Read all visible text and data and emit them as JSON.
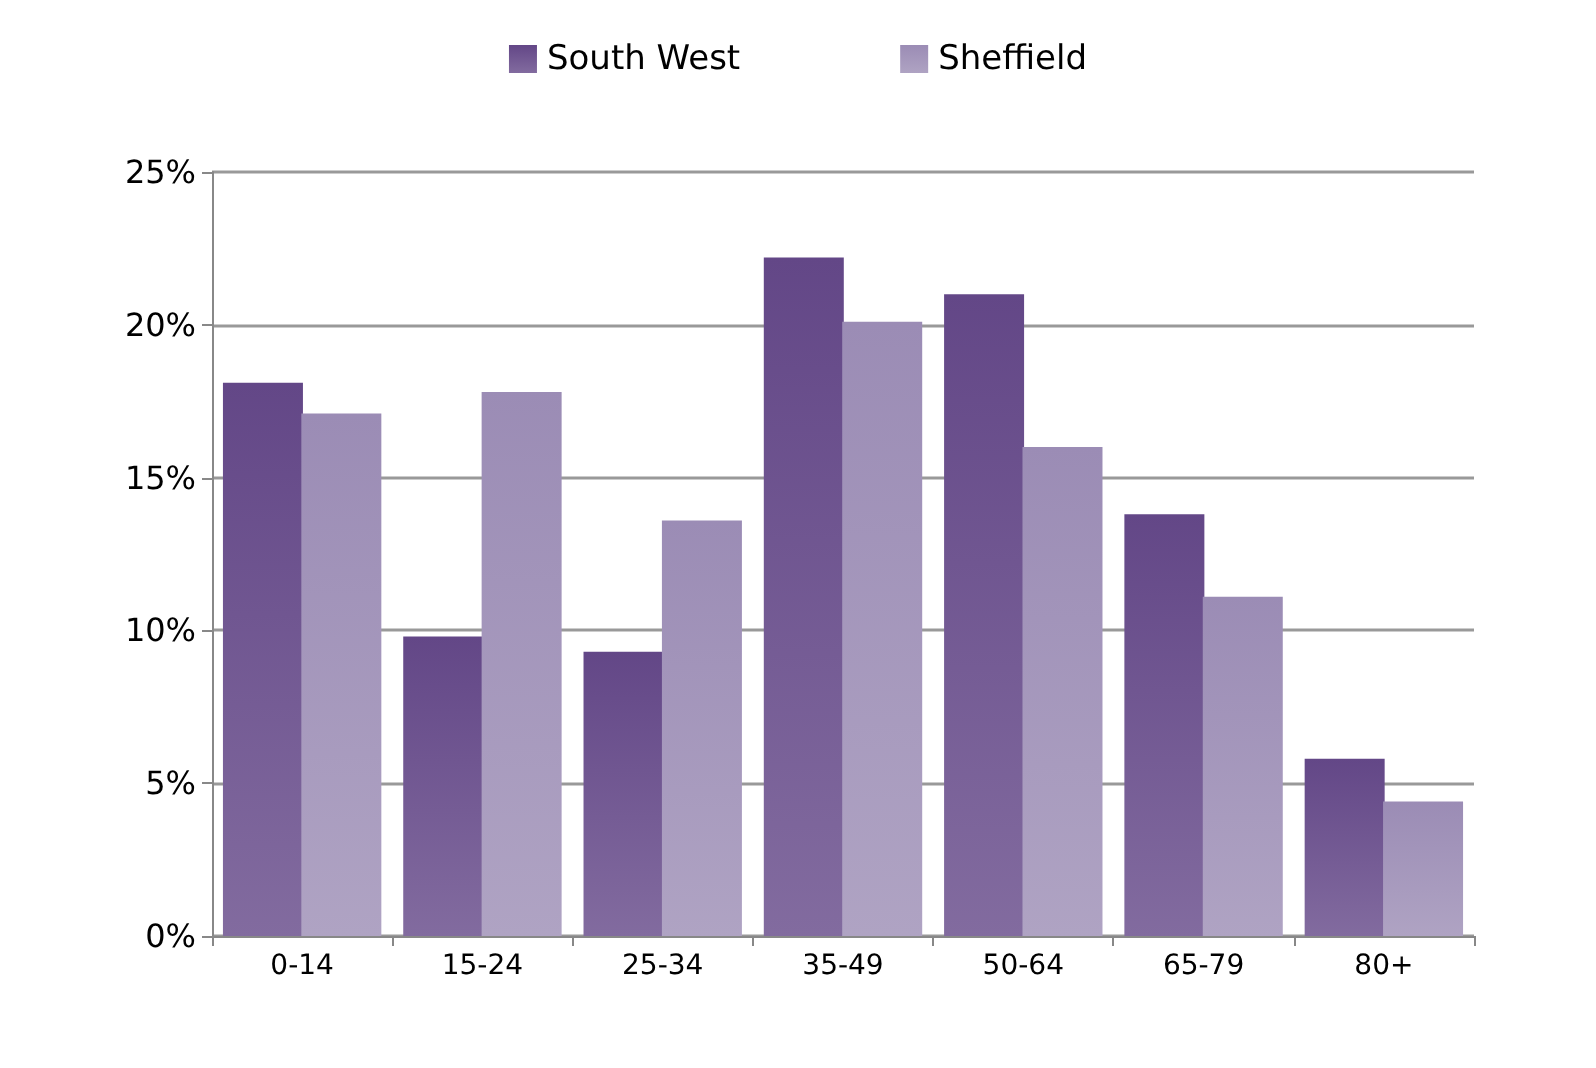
{
  "chart_data": {
    "type": "bar",
    "categories": [
      "0-14",
      "15-24",
      "25-34",
      "35-49",
      "50-64",
      "65-79",
      "80+"
    ],
    "series": [
      {
        "name": "South West",
        "color": "#634787",
        "values": [
          18.1,
          9.8,
          9.3,
          22.2,
          21.0,
          13.8,
          5.8
        ]
      },
      {
        "name": "Sheffield",
        "color": "#9b8cb5",
        "values": [
          17.1,
          17.8,
          13.6,
          20.1,
          16.0,
          11.1,
          4.4
        ]
      }
    ],
    "ylim": [
      0,
      25
    ],
    "yticks": [
      {
        "value": 0,
        "label": "0%"
      },
      {
        "value": 5,
        "label": "5%"
      },
      {
        "value": 10,
        "label": "10%"
      },
      {
        "value": 15,
        "label": "15%"
      },
      {
        "value": 20,
        "label": "20%"
      },
      {
        "value": 25,
        "label": "25%"
      }
    ],
    "grid": "y",
    "legend": "top"
  }
}
